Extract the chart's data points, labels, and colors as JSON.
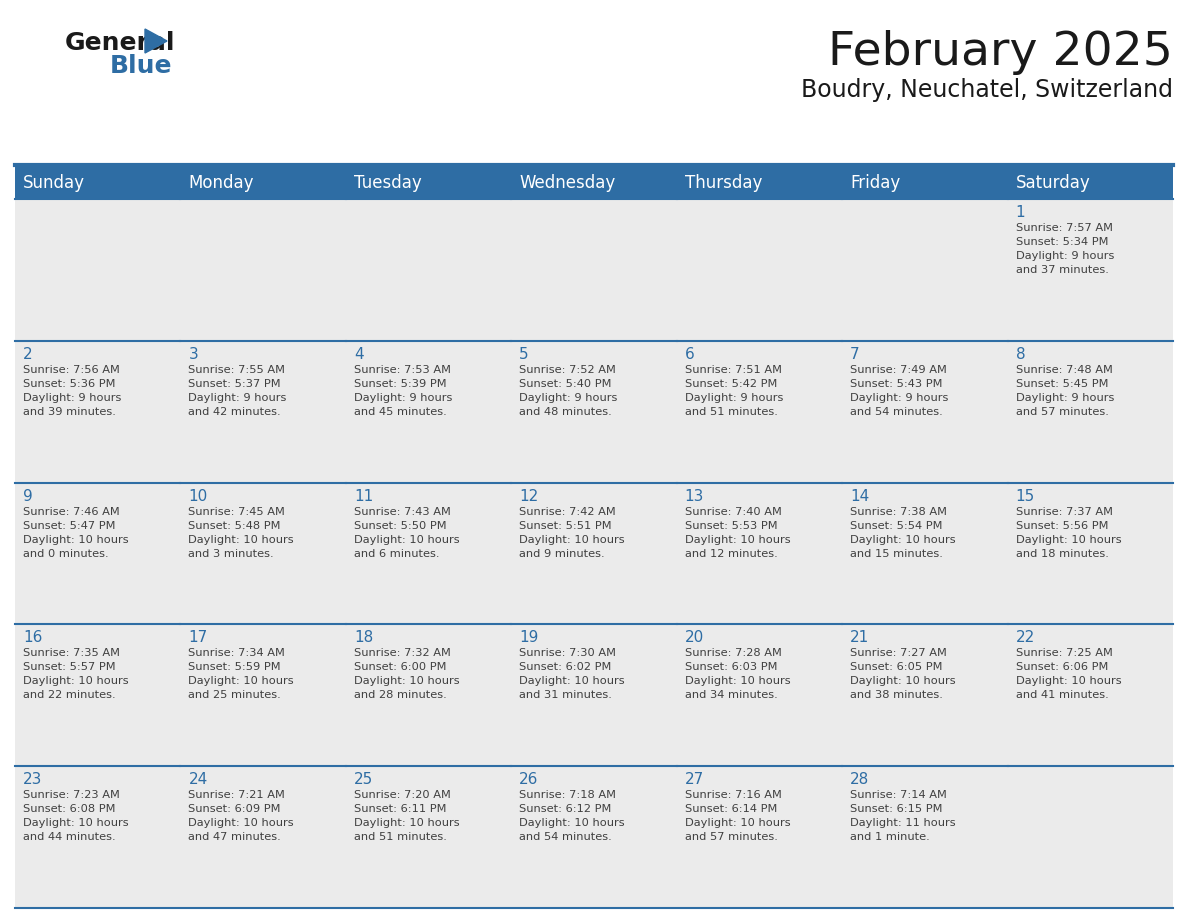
{
  "title": "February 2025",
  "subtitle": "Boudry, Neuchatel, Switzerland",
  "days_of_week": [
    "Sunday",
    "Monday",
    "Tuesday",
    "Wednesday",
    "Thursday",
    "Friday",
    "Saturday"
  ],
  "header_bg": "#2E6DA4",
  "header_text": "#FFFFFF",
  "cell_bg": "#EBEBEB",
  "text_color": "#404040",
  "day_num_color": "#2E6DA4",
  "border_color": "#2E6DA4",
  "calendar_data": [
    [
      {
        "day": null,
        "sunrise": null,
        "sunset": null,
        "daylight": null
      },
      {
        "day": null,
        "sunrise": null,
        "sunset": null,
        "daylight": null
      },
      {
        "day": null,
        "sunrise": null,
        "sunset": null,
        "daylight": null
      },
      {
        "day": null,
        "sunrise": null,
        "sunset": null,
        "daylight": null
      },
      {
        "day": null,
        "sunrise": null,
        "sunset": null,
        "daylight": null
      },
      {
        "day": null,
        "sunrise": null,
        "sunset": null,
        "daylight": null
      },
      {
        "day": 1,
        "sunrise": "7:57 AM",
        "sunset": "5:34 PM",
        "daylight": "9 hours\nand 37 minutes."
      }
    ],
    [
      {
        "day": 2,
        "sunrise": "7:56 AM",
        "sunset": "5:36 PM",
        "daylight": "9 hours\nand 39 minutes."
      },
      {
        "day": 3,
        "sunrise": "7:55 AM",
        "sunset": "5:37 PM",
        "daylight": "9 hours\nand 42 minutes."
      },
      {
        "day": 4,
        "sunrise": "7:53 AM",
        "sunset": "5:39 PM",
        "daylight": "9 hours\nand 45 minutes."
      },
      {
        "day": 5,
        "sunrise": "7:52 AM",
        "sunset": "5:40 PM",
        "daylight": "9 hours\nand 48 minutes."
      },
      {
        "day": 6,
        "sunrise": "7:51 AM",
        "sunset": "5:42 PM",
        "daylight": "9 hours\nand 51 minutes."
      },
      {
        "day": 7,
        "sunrise": "7:49 AM",
        "sunset": "5:43 PM",
        "daylight": "9 hours\nand 54 minutes."
      },
      {
        "day": 8,
        "sunrise": "7:48 AM",
        "sunset": "5:45 PM",
        "daylight": "9 hours\nand 57 minutes."
      }
    ],
    [
      {
        "day": 9,
        "sunrise": "7:46 AM",
        "sunset": "5:47 PM",
        "daylight": "10 hours\nand 0 minutes."
      },
      {
        "day": 10,
        "sunrise": "7:45 AM",
        "sunset": "5:48 PM",
        "daylight": "10 hours\nand 3 minutes."
      },
      {
        "day": 11,
        "sunrise": "7:43 AM",
        "sunset": "5:50 PM",
        "daylight": "10 hours\nand 6 minutes."
      },
      {
        "day": 12,
        "sunrise": "7:42 AM",
        "sunset": "5:51 PM",
        "daylight": "10 hours\nand 9 minutes."
      },
      {
        "day": 13,
        "sunrise": "7:40 AM",
        "sunset": "5:53 PM",
        "daylight": "10 hours\nand 12 minutes."
      },
      {
        "day": 14,
        "sunrise": "7:38 AM",
        "sunset": "5:54 PM",
        "daylight": "10 hours\nand 15 minutes."
      },
      {
        "day": 15,
        "sunrise": "7:37 AM",
        "sunset": "5:56 PM",
        "daylight": "10 hours\nand 18 minutes."
      }
    ],
    [
      {
        "day": 16,
        "sunrise": "7:35 AM",
        "sunset": "5:57 PM",
        "daylight": "10 hours\nand 22 minutes."
      },
      {
        "day": 17,
        "sunrise": "7:34 AM",
        "sunset": "5:59 PM",
        "daylight": "10 hours\nand 25 minutes."
      },
      {
        "day": 18,
        "sunrise": "7:32 AM",
        "sunset": "6:00 PM",
        "daylight": "10 hours\nand 28 minutes."
      },
      {
        "day": 19,
        "sunrise": "7:30 AM",
        "sunset": "6:02 PM",
        "daylight": "10 hours\nand 31 minutes."
      },
      {
        "day": 20,
        "sunrise": "7:28 AM",
        "sunset": "6:03 PM",
        "daylight": "10 hours\nand 34 minutes."
      },
      {
        "day": 21,
        "sunrise": "7:27 AM",
        "sunset": "6:05 PM",
        "daylight": "10 hours\nand 38 minutes."
      },
      {
        "day": 22,
        "sunrise": "7:25 AM",
        "sunset": "6:06 PM",
        "daylight": "10 hours\nand 41 minutes."
      }
    ],
    [
      {
        "day": 23,
        "sunrise": "7:23 AM",
        "sunset": "6:08 PM",
        "daylight": "10 hours\nand 44 minutes."
      },
      {
        "day": 24,
        "sunrise": "7:21 AM",
        "sunset": "6:09 PM",
        "daylight": "10 hours\nand 47 minutes."
      },
      {
        "day": 25,
        "sunrise": "7:20 AM",
        "sunset": "6:11 PM",
        "daylight": "10 hours\nand 51 minutes."
      },
      {
        "day": 26,
        "sunrise": "7:18 AM",
        "sunset": "6:12 PM",
        "daylight": "10 hours\nand 54 minutes."
      },
      {
        "day": 27,
        "sunrise": "7:16 AM",
        "sunset": "6:14 PM",
        "daylight": "10 hours\nand 57 minutes."
      },
      {
        "day": 28,
        "sunrise": "7:14 AM",
        "sunset": "6:15 PM",
        "daylight": "11 hours\nand 1 minute."
      },
      {
        "day": null,
        "sunrise": null,
        "sunset": null,
        "daylight": null
      }
    ]
  ],
  "fig_width": 11.88,
  "fig_height": 9.18,
  "title_fontsize": 34,
  "subtitle_fontsize": 17,
  "header_fontsize": 12,
  "day_num_fontsize": 11,
  "cell_text_fontsize": 8.2
}
